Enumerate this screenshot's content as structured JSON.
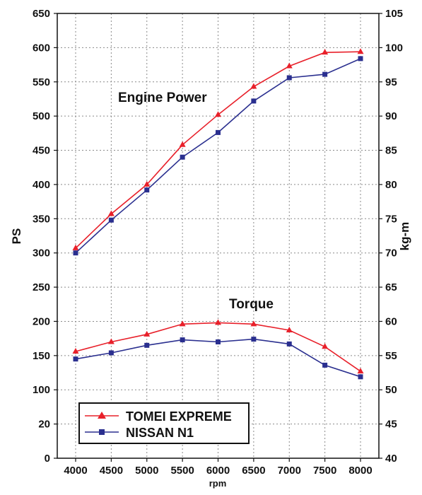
{
  "chart_data": {
    "type": "line",
    "x": [
      4000,
      4500,
      5000,
      5500,
      6000,
      6500,
      7000,
      7500,
      8000
    ],
    "xlabel": "rpm",
    "ylabel_left": "PS",
    "ylabel_right": "kg-m",
    "x_ticks": [
      "4000",
      "4500",
      "5000",
      "5500",
      "6000",
      "6500",
      "7000",
      "7500",
      "8000"
    ],
    "y_left_ticks": [
      "0",
      "20",
      "100",
      "150",
      "200",
      "250",
      "300",
      "350",
      "400",
      "450",
      "500",
      "550",
      "600",
      "650"
    ],
    "y_right_ticks": [
      "40",
      "45",
      "50",
      "55",
      "60",
      "65",
      "70",
      "75",
      "80",
      "85",
      "90",
      "95",
      "100",
      "105"
    ],
    "grid": true,
    "legend_placement": "bottom-left",
    "annotations": [
      "Engine Power",
      "Torque"
    ],
    "legend": [
      "TOMEI EXPREME",
      "NISSAN N1"
    ],
    "series": [
      {
        "group": "Engine Power",
        "name": "TOMEI EXPREME",
        "axis": "left",
        "color": "#e8202a",
        "marker": "triangle",
        "values": [
          307,
          357,
          400,
          458,
          502,
          543,
          573,
          593,
          594
        ]
      },
      {
        "group": "Engine Power",
        "name": "NISSAN N1",
        "axis": "left",
        "color": "#2a2f8f",
        "marker": "square",
        "values": [
          300,
          348,
          392,
          440,
          476,
          522,
          556,
          561,
          584
        ]
      },
      {
        "group": "Torque",
        "name": "TOMEI EXPREME",
        "axis": "right",
        "color": "#e8202a",
        "marker": "triangle",
        "values": [
          55.6,
          57.0,
          58.1,
          59.6,
          59.8,
          59.6,
          58.7,
          56.3,
          52.7
        ]
      },
      {
        "group": "Torque",
        "name": "NISSAN N1",
        "axis": "right",
        "color": "#2a2f8f",
        "marker": "square",
        "values": [
          54.5,
          55.4,
          56.5,
          57.3,
          57.0,
          57.4,
          56.7,
          53.6,
          51.9
        ]
      }
    ]
  }
}
